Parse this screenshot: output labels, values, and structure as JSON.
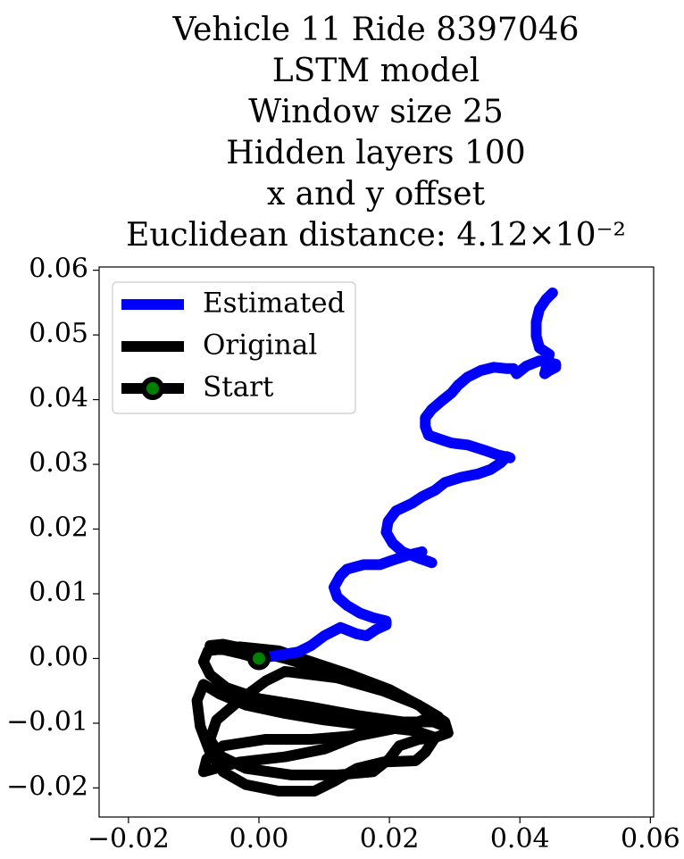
{
  "chart_data": {
    "type": "line",
    "title_lines": [
      "Vehicle 11 Ride 8397046",
      "LSTM model",
      "Window size 25",
      "Hidden layers 100",
      "x and y offset",
      "Euclidean distance: 4.12×10⁻²"
    ],
    "xlabel": "",
    "ylabel": "",
    "xlim": [
      -0.0245,
      0.0605
    ],
    "ylim": [
      -0.0245,
      0.0605
    ],
    "x_ticks": [
      -0.02,
      0.0,
      0.02,
      0.04,
      0.06
    ],
    "x_tick_labels": [
      "−0.02",
      "0.00",
      "0.02",
      "0.04",
      "0.06"
    ],
    "y_ticks": [
      -0.02,
      -0.01,
      0.0,
      0.01,
      0.02,
      0.03,
      0.04,
      0.05,
      0.06
    ],
    "y_tick_labels": [
      "−0.02",
      "−0.01",
      "0.00",
      "0.01",
      "0.02",
      "0.03",
      "0.04",
      "0.05",
      "0.06"
    ],
    "grid": false,
    "legend_position": "top-left",
    "series": [
      {
        "name": "Estimated",
        "color": "#0000ff",
        "points": [
          [
            0.0,
            0.0
          ],
          [
            0.003,
            0.0005
          ],
          [
            0.006,
            0.001
          ],
          [
            0.008,
            0.002
          ],
          [
            0.01,
            0.0035
          ],
          [
            0.0125,
            0.0048
          ],
          [
            0.015,
            0.0038
          ],
          [
            0.0165,
            0.0035
          ],
          [
            0.018,
            0.0045
          ],
          [
            0.0195,
            0.0052
          ],
          [
            0.0195,
            0.0058
          ],
          [
            0.0175,
            0.0063
          ],
          [
            0.0155,
            0.007
          ],
          [
            0.0135,
            0.0082
          ],
          [
            0.012,
            0.0095
          ],
          [
            0.0115,
            0.011
          ],
          [
            0.0125,
            0.0128
          ],
          [
            0.0135,
            0.0138
          ],
          [
            0.016,
            0.0145
          ],
          [
            0.0185,
            0.0145
          ],
          [
            0.0205,
            0.0152
          ],
          [
            0.023,
            0.016
          ],
          [
            0.025,
            0.0165
          ],
          [
            0.0245,
            0.0155
          ],
          [
            0.026,
            0.015
          ],
          [
            0.0265,
            0.0148
          ],
          [
            0.0245,
            0.0155
          ],
          [
            0.022,
            0.0165
          ],
          [
            0.0205,
            0.0178
          ],
          [
            0.0195,
            0.0195
          ],
          [
            0.0198,
            0.0212
          ],
          [
            0.021,
            0.0228
          ],
          [
            0.0235,
            0.024
          ],
          [
            0.025,
            0.025
          ],
          [
            0.027,
            0.026
          ],
          [
            0.0285,
            0.0272
          ],
          [
            0.031,
            0.028
          ],
          [
            0.0335,
            0.0285
          ],
          [
            0.0355,
            0.0292
          ],
          [
            0.037,
            0.0302
          ],
          [
            0.038,
            0.0312
          ],
          [
            0.0385,
            0.031
          ],
          [
            0.0365,
            0.0315
          ],
          [
            0.0345,
            0.0322
          ],
          [
            0.032,
            0.033
          ],
          [
            0.0295,
            0.0333
          ],
          [
            0.028,
            0.0338
          ],
          [
            0.026,
            0.0345
          ],
          [
            0.0255,
            0.0358
          ],
          [
            0.0255,
            0.0372
          ],
          [
            0.0265,
            0.0385
          ],
          [
            0.028,
            0.0398
          ],
          [
            0.0295,
            0.041
          ],
          [
            0.0305,
            0.0422
          ],
          [
            0.032,
            0.0435
          ],
          [
            0.034,
            0.0445
          ],
          [
            0.036,
            0.045
          ],
          [
            0.038,
            0.0448
          ],
          [
            0.039,
            0.0448
          ],
          [
            0.0395,
            0.044
          ],
          [
            0.041,
            0.0452
          ],
          [
            0.043,
            0.046
          ],
          [
            0.0455,
            0.0455
          ],
          [
            0.0455,
            0.045
          ],
          [
            0.0445,
            0.0445
          ],
          [
            0.0438,
            0.044
          ],
          [
            0.0442,
            0.0455
          ],
          [
            0.0445,
            0.047
          ],
          [
            0.043,
            0.048
          ],
          [
            0.0425,
            0.0498
          ],
          [
            0.0425,
            0.052
          ],
          [
            0.043,
            0.054
          ],
          [
            0.044,
            0.0555
          ],
          [
            0.045,
            0.0565
          ]
        ]
      },
      {
        "name": "Original",
        "color": "#000000",
        "points": [
          [
            0.0,
            0.0
          ],
          [
            -0.003,
            0.0008
          ],
          [
            -0.006,
            0.0015
          ],
          [
            -0.0075,
            0.002
          ],
          [
            -0.0055,
            0.0022
          ],
          [
            -0.002,
            0.0015
          ],
          [
            0.004,
            0.0
          ],
          [
            0.01,
            -0.0018
          ],
          [
            0.016,
            -0.0035
          ],
          [
            0.021,
            -0.0055
          ],
          [
            0.025,
            -0.0075
          ],
          [
            0.0275,
            -0.009
          ],
          [
            0.028,
            -0.0098
          ],
          [
            0.022,
            -0.0098
          ],
          [
            0.015,
            -0.0088
          ],
          [
            0.008,
            -0.0075
          ],
          [
            0.0,
            -0.0062
          ],
          [
            -0.005,
            -0.0045
          ],
          [
            -0.0075,
            -0.0025
          ],
          [
            -0.0085,
            -0.0005
          ],
          [
            -0.0078,
            0.0012
          ],
          [
            -0.003,
            0.0018
          ],
          [
            0.003,
            0.0012
          ],
          [
            0.008,
            -0.0005
          ],
          [
            0.014,
            -0.0025
          ],
          [
            0.02,
            -0.0048
          ],
          [
            0.025,
            -0.0075
          ],
          [
            0.0285,
            -0.0098
          ],
          [
            0.029,
            -0.0115
          ],
          [
            0.027,
            -0.0122
          ],
          [
            0.024,
            -0.0112
          ],
          [
            0.018,
            -0.0105
          ],
          [
            0.01,
            -0.0095
          ],
          [
            0.004,
            -0.0085
          ],
          [
            -0.002,
            -0.0072
          ],
          [
            -0.006,
            -0.0055
          ],
          [
            -0.0085,
            -0.004
          ],
          [
            -0.0095,
            -0.0065
          ],
          [
            -0.009,
            -0.0105
          ],
          [
            -0.0075,
            -0.0145
          ],
          [
            -0.0055,
            -0.0175
          ],
          [
            -0.002,
            -0.0195
          ],
          [
            0.003,
            -0.0205
          ],
          [
            0.0085,
            -0.0205
          ],
          [
            0.0115,
            -0.019
          ],
          [
            0.015,
            -0.017
          ],
          [
            0.019,
            -0.016
          ],
          [
            0.024,
            -0.0158
          ],
          [
            0.0255,
            -0.0145
          ],
          [
            0.027,
            -0.0122
          ],
          [
            0.0245,
            -0.0125
          ],
          [
            0.0215,
            -0.0135
          ],
          [
            0.02,
            -0.0155
          ],
          [
            0.0175,
            -0.0175
          ],
          [
            0.012,
            -0.018
          ],
          [
            0.005,
            -0.018
          ],
          [
            -0.002,
            -0.017
          ],
          [
            -0.006,
            -0.015
          ],
          [
            -0.0075,
            -0.0125
          ],
          [
            -0.0065,
            -0.0095
          ],
          [
            -0.003,
            -0.0065
          ],
          [
            0.001,
            -0.0035
          ],
          [
            0.004,
            -0.002
          ],
          [
            0.012,
            -0.003
          ],
          [
            0.019,
            -0.005
          ],
          [
            0.0245,
            -0.0072
          ],
          [
            0.0265,
            -0.009
          ],
          [
            0.0225,
            -0.0105
          ],
          [
            0.015,
            -0.012
          ],
          [
            0.01,
            -0.014
          ],
          [
            0.004,
            -0.0152
          ],
          [
            -0.003,
            -0.016
          ],
          [
            -0.0085,
            -0.0175
          ],
          [
            -0.008,
            -0.0155
          ],
          [
            -0.0055,
            -0.0135
          ],
          [
            0.001,
            -0.0125
          ],
          [
            0.008,
            -0.0125
          ],
          [
            0.014,
            -0.012
          ],
          [
            0.02,
            -0.0105
          ],
          [
            0.026,
            -0.0095
          ],
          [
            0.0285,
            -0.0105
          ]
        ]
      }
    ],
    "start_point": {
      "name": "Start",
      "x": 0.0,
      "y": 0.0,
      "marker_color": "#008000",
      "edge_color": "#000000"
    }
  }
}
